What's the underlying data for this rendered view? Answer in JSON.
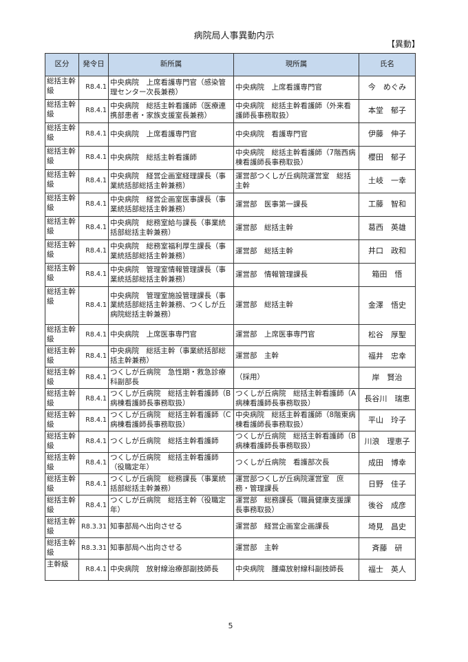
{
  "title": "病院局人事異動内示",
  "tag": "【異動】",
  "page_number": "5",
  "columns": [
    "区分",
    "発令日",
    "新所属",
    "現所属",
    "氏名"
  ],
  "header_bg": "#c6d9ee",
  "rows": [
    {
      "kubun": "総括主幹級",
      "date": "R8.4.1",
      "new": "中央病院　上席看護専門官（感染管理センター次長兼務）",
      "current": "中央病院　上席看護専門官",
      "name": "今　めぐみ"
    },
    {
      "kubun": "総括主幹級",
      "date": "R8.4.1",
      "new": "中央病院　総括主幹看護師（医療連携部患者・家族支援室長兼務）",
      "current": "中央病院　総括主幹看護師（外来看護師長事務取扱）",
      "name": "本堂　郁子"
    },
    {
      "kubun": "総括主幹級",
      "date": "R8.4.1",
      "new": "中央病院　上席看護専門官",
      "current": "中央病院　看護専門官",
      "name": "伊藤　伸子"
    },
    {
      "kubun": "総括主幹級",
      "date": "R8.4.1",
      "new": "中央病院　総括主幹看護師",
      "current": "中央病院　総括主幹看護師（7階西病棟看護師長事務取扱）",
      "name": "櫻田　郁子"
    },
    {
      "kubun": "総括主幹級",
      "date": "R8.4.1",
      "new": "中央病院　経営企画室経理課長（事業統括部総括主幹兼務）",
      "current": "運営部つくしが丘病院運営室　総括主幹",
      "name": "土岐　一幸"
    },
    {
      "kubun": "総括主幹級",
      "date": "R8.4.1",
      "new": "中央病院　経営企画室医事課長（事業統括部総括主幹兼務）",
      "current": "運営部　医事第一課長",
      "name": "工藤　智和"
    },
    {
      "kubun": "総括主幹級",
      "date": "R8.4.1",
      "new": "中央病院　総務室給与課長（事業統括部総括主幹兼務）",
      "current": "運営部　総括主幹",
      "name": "葛西　英雄"
    },
    {
      "kubun": "総括主幹級",
      "date": "R8.4.1",
      "new": "中央病院　総務室福利厚生課長（事業統括部総括主幹兼務）",
      "current": "運営部　総括主幹",
      "name": "井口　政和"
    },
    {
      "kubun": "総括主幹級",
      "date": "R8.4.1",
      "new": "中央病院　管理室情報管理課長（事業統括部総括主幹兼務）",
      "current": "運営部　情報管理課長",
      "name": "箱田　悟"
    },
    {
      "kubun": "総括主幹級",
      "date": "R8.4.1",
      "new": "中央病院　管理室施設管理課長（事業統括部総括主幹兼務、つくしが丘病院総括主幹兼務）",
      "current": "運営部　総括主幹",
      "name": "金澤　悟史"
    },
    {
      "kubun": "総括主幹級",
      "date": "R8.4.1",
      "new": "中央病院　上席医事専門官",
      "current": "運営部　上席医事専門官",
      "name": "松谷　厚聖"
    },
    {
      "kubun": "総括主幹級",
      "date": "R8.4.1",
      "new": "中央病院　総括主幹（事業統括部総括主幹兼務）",
      "current": "運営部　主幹",
      "name": "福井　忠幸"
    },
    {
      "kubun": "総括主幹級",
      "date": "R8.4.1",
      "new": "つくしが丘病院　急性期・救急診療科副部長",
      "current": "（採用）",
      "name": "岸　賢治"
    },
    {
      "kubun": "総括主幹級",
      "date": "R8.4.1",
      "new": "つくしが丘病院　総括主幹看護師（B病棟看護師長事務取扱）",
      "current": "つくしが丘病院　総括主幹看護師（A病棟看護師長事務取扱）",
      "name": "長谷川　瑞恵"
    },
    {
      "kubun": "総括主幹級",
      "date": "R8.4.1",
      "new": "つくしが丘病院　総括主幹看護師（C病棟看護師長事務取扱）",
      "current": "中央病院　総括主幹看護師（8階東病棟看護師長事務取扱）",
      "name": "平山　玲子"
    },
    {
      "kubun": "総括主幹級",
      "date": "R8.4.1",
      "new": "つくしが丘病院　総括主幹看護師",
      "current": "つくしが丘病院　総括主幹看護師（B病棟看護師長事務取扱）",
      "name": "川浪　理恵子"
    },
    {
      "kubun": "総括主幹級",
      "date": "R8.4.1",
      "new": "つくしが丘病院　総括主幹看護師（役職定年）",
      "current": "つくしが丘病院　看護部次長",
      "name": "成田　博幸"
    },
    {
      "kubun": "総括主幹級",
      "date": "R8.4.1",
      "new": "つくしが丘病院　総務課長（事業統括部総括主幹兼務）",
      "current": "運営部つくしが丘病院運営室　庶務・管理課長",
      "name": "日野　佳子"
    },
    {
      "kubun": "総括主幹級",
      "date": "R8.4.1",
      "new": "つくしが丘病院　総括主幹（役職定年）",
      "current": "運営部　総務課長（職員健康支援課長事務取扱）",
      "name": "後谷　成彦"
    },
    {
      "kubun": "総括主幹級",
      "date": "R8.3.31",
      "new": "知事部局へ出向させる",
      "current": "運営部　経営企画室企画課長",
      "name": "埼見　昌史"
    },
    {
      "kubun": "総括主幹級",
      "date": "R8.3.31",
      "new": "知事部局へ出向させる",
      "current": "運営部　主幹",
      "name": "斉藤　研"
    },
    {
      "kubun": "主幹級",
      "date": "R8.4.1",
      "new": "中央病院　放射線治療部副技師長",
      "current": "中央病院　腫瘍放射線科副技師長",
      "name": "福士　英人"
    }
  ]
}
